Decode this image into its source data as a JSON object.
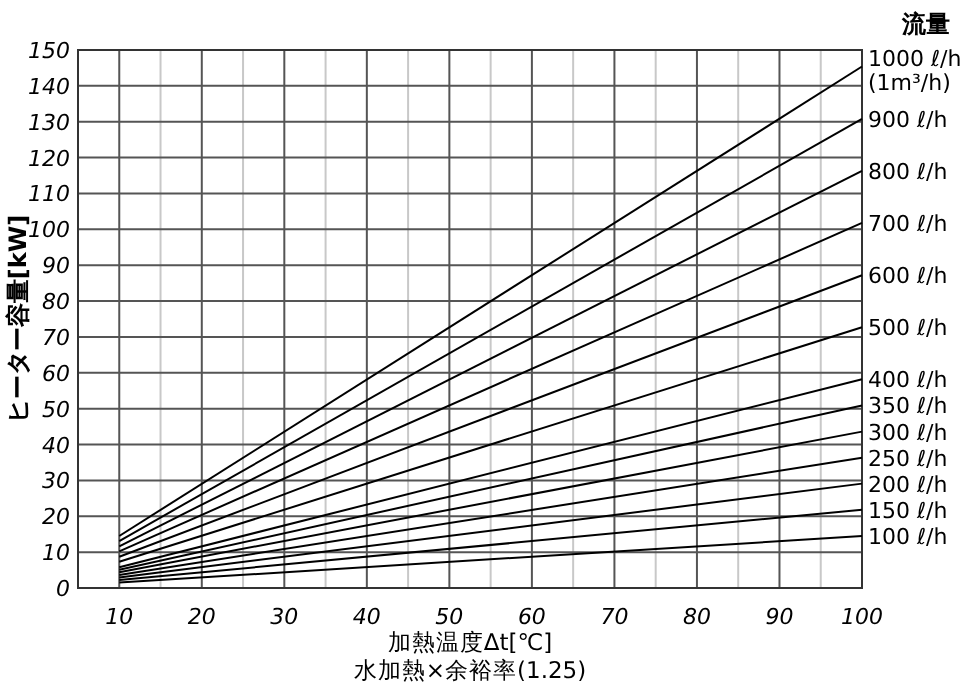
{
  "chart_data": {
    "type": "line",
    "xlabel": "加熱温度Δt[℃]",
    "ylabel": "ヒーター容量[kW]",
    "legend_title": "流量",
    "annotations": [
      "水加熱×余裕率(1.25)"
    ],
    "grid": true,
    "xlim": [
      5,
      100
    ],
    "ylim": [
      0,
      150
    ],
    "xticks": [
      10,
      {
        "value": 15,
        "label": null
      },
      20,
      {
        "value": 25,
        "label": null
      },
      30,
      {
        "value": 35,
        "label": null
      },
      40,
      {
        "value": 45,
        "label": null
      },
      50,
      {
        "value": 55,
        "label": null
      },
      60,
      {
        "value": 65,
        "label": null
      },
      70,
      {
        "value": 75,
        "label": null
      },
      80,
      {
        "value": 85,
        "label": null
      },
      90,
      {
        "value": 95,
        "label": null
      },
      100
    ],
    "yticks": [
      0,
      10,
      20,
      30,
      40,
      50,
      60,
      70,
      80,
      90,
      100,
      110,
      120,
      130,
      140,
      150
    ],
    "x": [
      10,
      100
    ],
    "series": [
      {
        "name": "100 ℓ/h",
        "color": "#000000",
        "values": [
          1.5,
          14.5
        ]
      },
      {
        "name": "150 ℓ/h",
        "color": "#000000",
        "values": [
          2.2,
          21.8
        ]
      },
      {
        "name": "200 ℓ/h",
        "color": "#000000",
        "values": [
          2.9,
          29.1
        ]
      },
      {
        "name": "250 ℓ/h",
        "color": "#000000",
        "values": [
          3.6,
          36.3
        ]
      },
      {
        "name": "300 ℓ/h",
        "color": "#000000",
        "values": [
          4.4,
          43.6
        ]
      },
      {
        "name": "350 ℓ/h",
        "color": "#000000",
        "values": [
          5.1,
          50.9
        ]
      },
      {
        "name": "400 ℓ/h",
        "color": "#000000",
        "values": [
          5.8,
          58.2
        ]
      },
      {
        "name": "500 ℓ/h",
        "color": "#000000",
        "values": [
          7.3,
          72.7
        ]
      },
      {
        "name": "600 ℓ/h",
        "color": "#000000",
        "values": [
          8.7,
          87.2
        ]
      },
      {
        "name": "700 ℓ/h",
        "color": "#000000",
        "values": [
          10.2,
          101.8
        ]
      },
      {
        "name": "800 ℓ/h",
        "color": "#000000",
        "values": [
          11.6,
          116.3
        ]
      },
      {
        "name": "900 ℓ/h",
        "color": "#000000",
        "values": [
          13.1,
          130.8
        ]
      },
      {
        "name": "1000 ℓ/h\n(1m³/h)",
        "color": "#000000",
        "values": [
          14.5,
          145.4
        ]
      }
    ]
  }
}
